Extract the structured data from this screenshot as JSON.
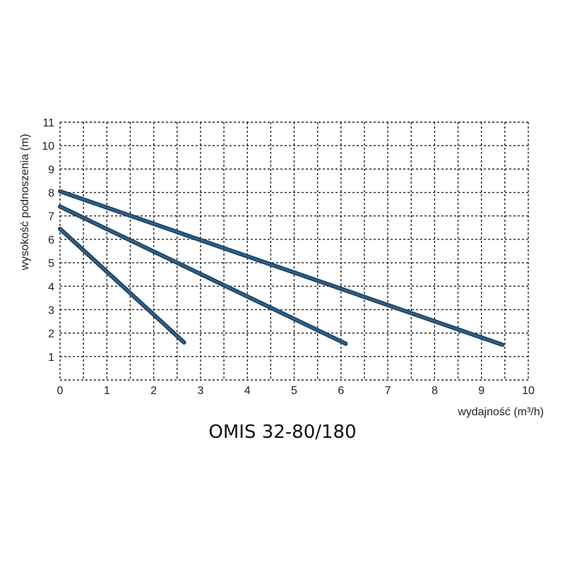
{
  "chart_data": {
    "type": "line",
    "title": "OMIS 32-80/180",
    "xlabel": "wydajność (m³/h)",
    "ylabel": "wysokość podnoszenia (m)",
    "xlim": [
      0,
      10
    ],
    "ylim": [
      0,
      11
    ],
    "x_ticks": [
      "0",
      "1",
      "2",
      "3",
      "4",
      "5",
      "6",
      "7",
      "8",
      "9",
      "10"
    ],
    "y_ticks": [
      "1",
      "2",
      "3",
      "4",
      "5",
      "6",
      "7",
      "8",
      "9",
      "10",
      "11"
    ],
    "grid": true,
    "grid_style": "dashed",
    "line_color": "#2f5f86",
    "line_edge_color": "#1c3e5c",
    "series": [
      {
        "points": [
          [
            0,
            8.05
          ],
          [
            9.45,
            1.5
          ]
        ]
      },
      {
        "points": [
          [
            0,
            7.4
          ],
          [
            6.1,
            1.55
          ]
        ]
      },
      {
        "points": [
          [
            0,
            6.45
          ],
          [
            2.65,
            1.6
          ]
        ]
      }
    ]
  }
}
